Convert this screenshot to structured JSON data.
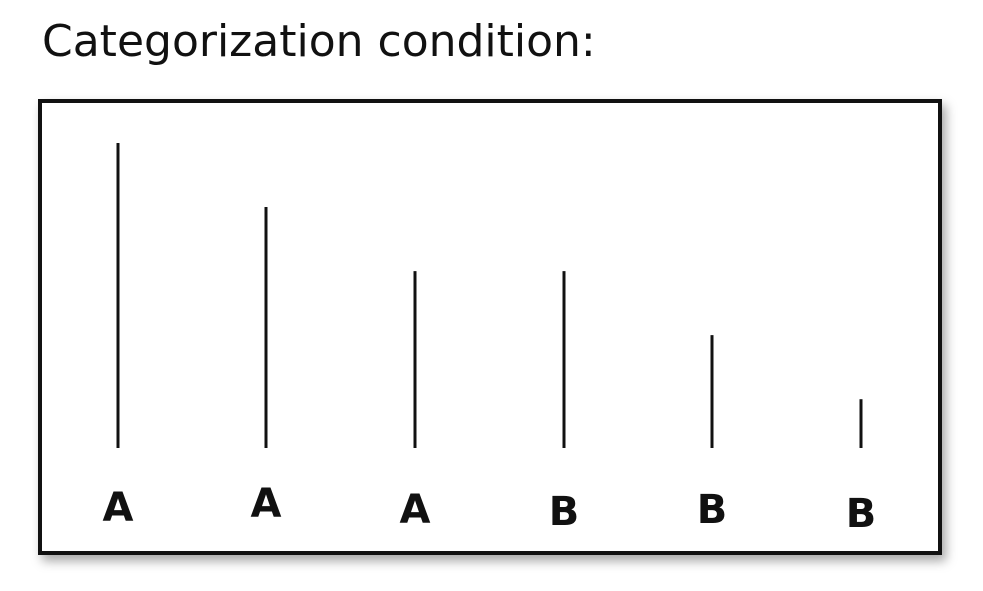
{
  "title": "Categorization condition:",
  "line_color": "#111111",
  "items": [
    {
      "label": "A",
      "relative_length": 1.0
    },
    {
      "label": "A",
      "relative_length": 0.79
    },
    {
      "label": "A",
      "relative_length": 0.58
    },
    {
      "label": "B",
      "relative_length": 0.58
    },
    {
      "label": "B",
      "relative_length": 0.37
    },
    {
      "label": "B",
      "relative_length": 0.16
    }
  ]
}
